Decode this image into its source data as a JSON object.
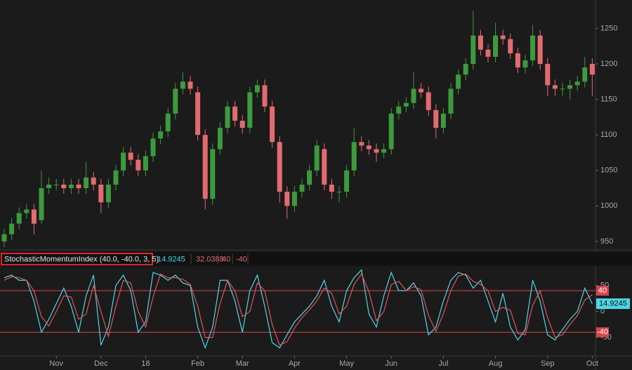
{
  "chart_data": [
    {
      "type": "candlestick",
      "open": [
        950,
        960,
        975,
        990,
        995,
        980,
        1025,
        1030,
        1030,
        1025,
        1030,
        1025,
        1040,
        1030,
        1005,
        1030,
        1050,
        1075,
        1065,
        1050,
        1070,
        1095,
        1105,
        1130,
        1165,
        1175,
        1160,
        1100,
        1010,
        1080,
        1110,
        1140,
        1120,
        1110,
        1160,
        1170,
        1140,
        1090,
        1020,
        1000,
        1020,
        1030,
        1050,
        1080,
        1030,
        1020,
        1020,
        1050,
        1090,
        1085,
        1080,
        1075,
        1080,
        1130,
        1140,
        1145,
        1165,
        1160,
        1135,
        1110,
        1130,
        1165,
        1185,
        1200,
        1240,
        1220,
        1210,
        1240,
        1235,
        1215,
        1195,
        1205,
        1240,
        1200,
        1170,
        1165,
        1165,
        1170,
        1175,
        1200
      ],
      "high": [
        968,
        983,
        998,
        1003,
        1003,
        1050,
        1040,
        1038,
        1038,
        1038,
        1038,
        1062,
        1048,
        1038,
        1038,
        1058,
        1083,
        1083,
        1073,
        1078,
        1103,
        1113,
        1138,
        1173,
        1188,
        1183,
        1168,
        1108,
        1088,
        1118,
        1148,
        1148,
        1128,
        1168,
        1178,
        1178,
        1148,
        1098,
        1028,
        1028,
        1038,
        1058,
        1093,
        1088,
        1038,
        1028,
        1058,
        1110,
        1098,
        1093,
        1088,
        1088,
        1138,
        1148,
        1153,
        1188,
        1173,
        1168,
        1143,
        1138,
        1173,
        1193,
        1208,
        1275,
        1248,
        1228,
        1258,
        1248,
        1243,
        1223,
        1213,
        1255,
        1248,
        1208,
        1178,
        1173,
        1178,
        1183,
        1210,
        1208
      ],
      "low": [
        942,
        952,
        967,
        982,
        960,
        975,
        1017,
        1022,
        1017,
        1017,
        1017,
        1017,
        1022,
        990,
        997,
        1022,
        1042,
        1057,
        1042,
        1042,
        1062,
        1087,
        1097,
        1122,
        1157,
        1157,
        1092,
        995,
        1002,
        1072,
        1102,
        1112,
        1102,
        1102,
        1152,
        1132,
        1082,
        1005,
        982,
        992,
        1012,
        1022,
        1042,
        1022,
        1010,
        1005,
        1012,
        1042,
        1077,
        1072,
        1062,
        1067,
        1072,
        1122,
        1132,
        1137,
        1152,
        1127,
        1095,
        1102,
        1122,
        1157,
        1177,
        1192,
        1212,
        1202,
        1202,
        1227,
        1207,
        1187,
        1187,
        1197,
        1192,
        1155,
        1155,
        1155,
        1150,
        1162,
        1167,
        1155
      ],
      "close": [
        960,
        975,
        990,
        995,
        975,
        1025,
        1030,
        1030,
        1025,
        1030,
        1025,
        1040,
        1030,
        1005,
        1030,
        1050,
        1075,
        1065,
        1050,
        1070,
        1095,
        1105,
        1130,
        1165,
        1175,
        1165,
        1100,
        1010,
        1080,
        1110,
        1140,
        1120,
        1110,
        1160,
        1170,
        1140,
        1090,
        1020,
        1000,
        1020,
        1030,
        1050,
        1085,
        1030,
        1020,
        1020,
        1050,
        1090,
        1085,
        1080,
        1075,
        1080,
        1130,
        1140,
        1145,
        1165,
        1160,
        1135,
        1110,
        1130,
        1165,
        1185,
        1200,
        1240,
        1220,
        1210,
        1240,
        1235,
        1215,
        1195,
        1205,
        1240,
        1200,
        1170,
        1165,
        1165,
        1170,
        1175,
        1195,
        1185
      ],
      "up_color": "#3d9a3d",
      "down_color": "#e36b70",
      "ylim": [
        939,
        1290
      ],
      "yticks": [
        950,
        1000,
        1050,
        1100,
        1150,
        1200,
        1250
      ]
    },
    {
      "type": "line",
      "title": "StochasticMomentumIndex (40.0, -40.0, 3, 5)",
      "series": [
        {
          "color": "#4fd6e6",
          "values": [
            65,
            70,
            60,
            60,
            20,
            -40,
            -15,
            15,
            45,
            10,
            -40,
            30,
            70,
            -65,
            -30,
            50,
            70,
            40,
            -40,
            -20,
            75,
            70,
            60,
            70,
            55,
            50,
            -30,
            -70,
            -30,
            60,
            60,
            20,
            -40,
            40,
            70,
            10,
            -60,
            -70,
            -45,
            -20,
            -5,
            10,
            30,
            60,
            10,
            -20,
            40,
            65,
            80,
            -5,
            -30,
            30,
            75,
            40,
            40,
            55,
            30,
            -45,
            -30,
            20,
            60,
            75,
            70,
            45,
            60,
            20,
            -20,
            35,
            -30,
            -55,
            -35,
            60,
            20,
            -45,
            -55,
            -35,
            -15,
            0,
            45,
            14.9245
          ]
        },
        {
          "color": "#e0545c",
          "values": [
            60,
            67,
            65,
            60,
            40,
            -10,
            -28,
            0,
            30,
            28,
            -15,
            -5,
            50,
            0,
            -48,
            10,
            60,
            55,
            0,
            -30,
            28,
            72,
            65,
            65,
            62,
            52,
            10,
            -50,
            -50,
            15,
            60,
            40,
            -10,
            0,
            55,
            40,
            -25,
            -65,
            -58,
            -32,
            -12,
            3,
            20,
            45,
            35,
            -5,
            10,
            52,
            72,
            38,
            -18,
            0,
            52,
            58,
            40,
            48,
            42,
            -8,
            -38,
            -5,
            40,
            68,
            72,
            58,
            52,
            40,
            0,
            8,
            2,
            -42,
            -45,
            12,
            40,
            -12,
            -50,
            -45,
            -25,
            -8,
            22,
            32.0388
          ]
        }
      ],
      "levels": [
        40,
        -40
      ],
      "level_color": "#d9454d",
      "ylim": [
        -83,
        86
      ],
      "yticks": [
        -50,
        0,
        50
      ],
      "xticks": [
        {
          "value": 7,
          "label": "Nov"
        },
        {
          "value": 13,
          "label": "Dec"
        },
        {
          "value": 19,
          "label": "18"
        },
        {
          "value": 26,
          "label": "Feb"
        },
        {
          "value": 32,
          "label": "Mar"
        },
        {
          "value": 39,
          "label": "Apr"
        },
        {
          "value": 46,
          "label": "May"
        },
        {
          "value": 52,
          "label": "Jun"
        },
        {
          "value": 59,
          "label": "Jul"
        },
        {
          "value": 66,
          "label": "Aug"
        },
        {
          "value": 73,
          "label": "Sep"
        },
        {
          "value": 79,
          "label": "Oct"
        }
      ]
    }
  ]
}
